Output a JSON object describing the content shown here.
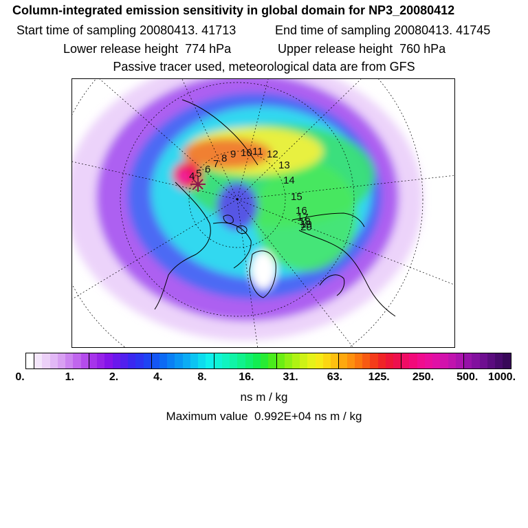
{
  "header": {
    "title": "Column-integrated emission sensitivity in global domain for NP3_20080412",
    "start_time": "Start time of sampling 20080413. 41713",
    "end_time": "End time of sampling 20080413. 41745",
    "lower_release": "Lower release height  774 hPa",
    "upper_release": "Upper release height  760 hPa",
    "passive_note": "Passive tracer used, meteorological data are from GFS"
  },
  "map": {
    "projection": "polar stereographic (north pole)",
    "trajectory_labels": [
      "4",
      "5",
      "6",
      "7",
      "8",
      "9",
      "10",
      "11",
      "12",
      "13",
      "14",
      "15",
      "16",
      "17",
      "18",
      "19",
      "20"
    ],
    "release_marker_color": "#8b1a4a",
    "colors": {
      "low": "#e8c8f8",
      "purple": "#9a3cf0",
      "blue": "#3c5cf5",
      "cyan": "#32e0f0",
      "green": "#3ce060",
      "yellow": "#e8f040",
      "orange": "#f08030",
      "red": "#f01850",
      "magenta": "#f020a0"
    }
  },
  "colorbar": {
    "colors": [
      "#ffffff",
      "#f4e6fb",
      "#ecd0f8",
      "#e2b8f6",
      "#d8a0f2",
      "#cc84f0",
      "#c066ee",
      "#b44cec",
      "#a634ea",
      "#9622e8",
      "#8414ea",
      "#6a18ec",
      "#5220ee",
      "#3a28f0",
      "#2c34f2",
      "#1e44f4",
      "#1456f4",
      "#0c6af4",
      "#0a80f4",
      "#0a96f4",
      "#0cacf4",
      "#0cc4f2",
      "#0edcee",
      "#10f0ec",
      "#10f4d6",
      "#10f4c0",
      "#10f4a6",
      "#10f28c",
      "#10f070",
      "#12ee52",
      "#28ec34",
      "#4aec1c",
      "#6cee14",
      "#90f014",
      "#b0f214",
      "#cef216",
      "#e6f218",
      "#f6ea16",
      "#fcd612",
      "#fec010",
      "#fea80e",
      "#fe900e",
      "#fc760e",
      "#f85a12",
      "#f43c1a",
      "#f02426",
      "#ee1638",
      "#ee104e",
      "#f00c64",
      "#f20a7a",
      "#f00c8e",
      "#ea0e9c",
      "#e010a6",
      "#d212ac",
      "#c014ae",
      "#ac14ae",
      "#9612a8",
      "#82109e",
      "#6e0e90",
      "#5a0c7e",
      "#480a6c",
      "#380858"
    ],
    "ticks": [
      "0.",
      "1.",
      "2.",
      "4.",
      "8.",
      "16.",
      "31.",
      "63.",
      "125.",
      "250.",
      "500.",
      "1000."
    ],
    "units": "ns m / kg"
  },
  "max_value": "Maximum value  0.992E+04 ns m / kg"
}
